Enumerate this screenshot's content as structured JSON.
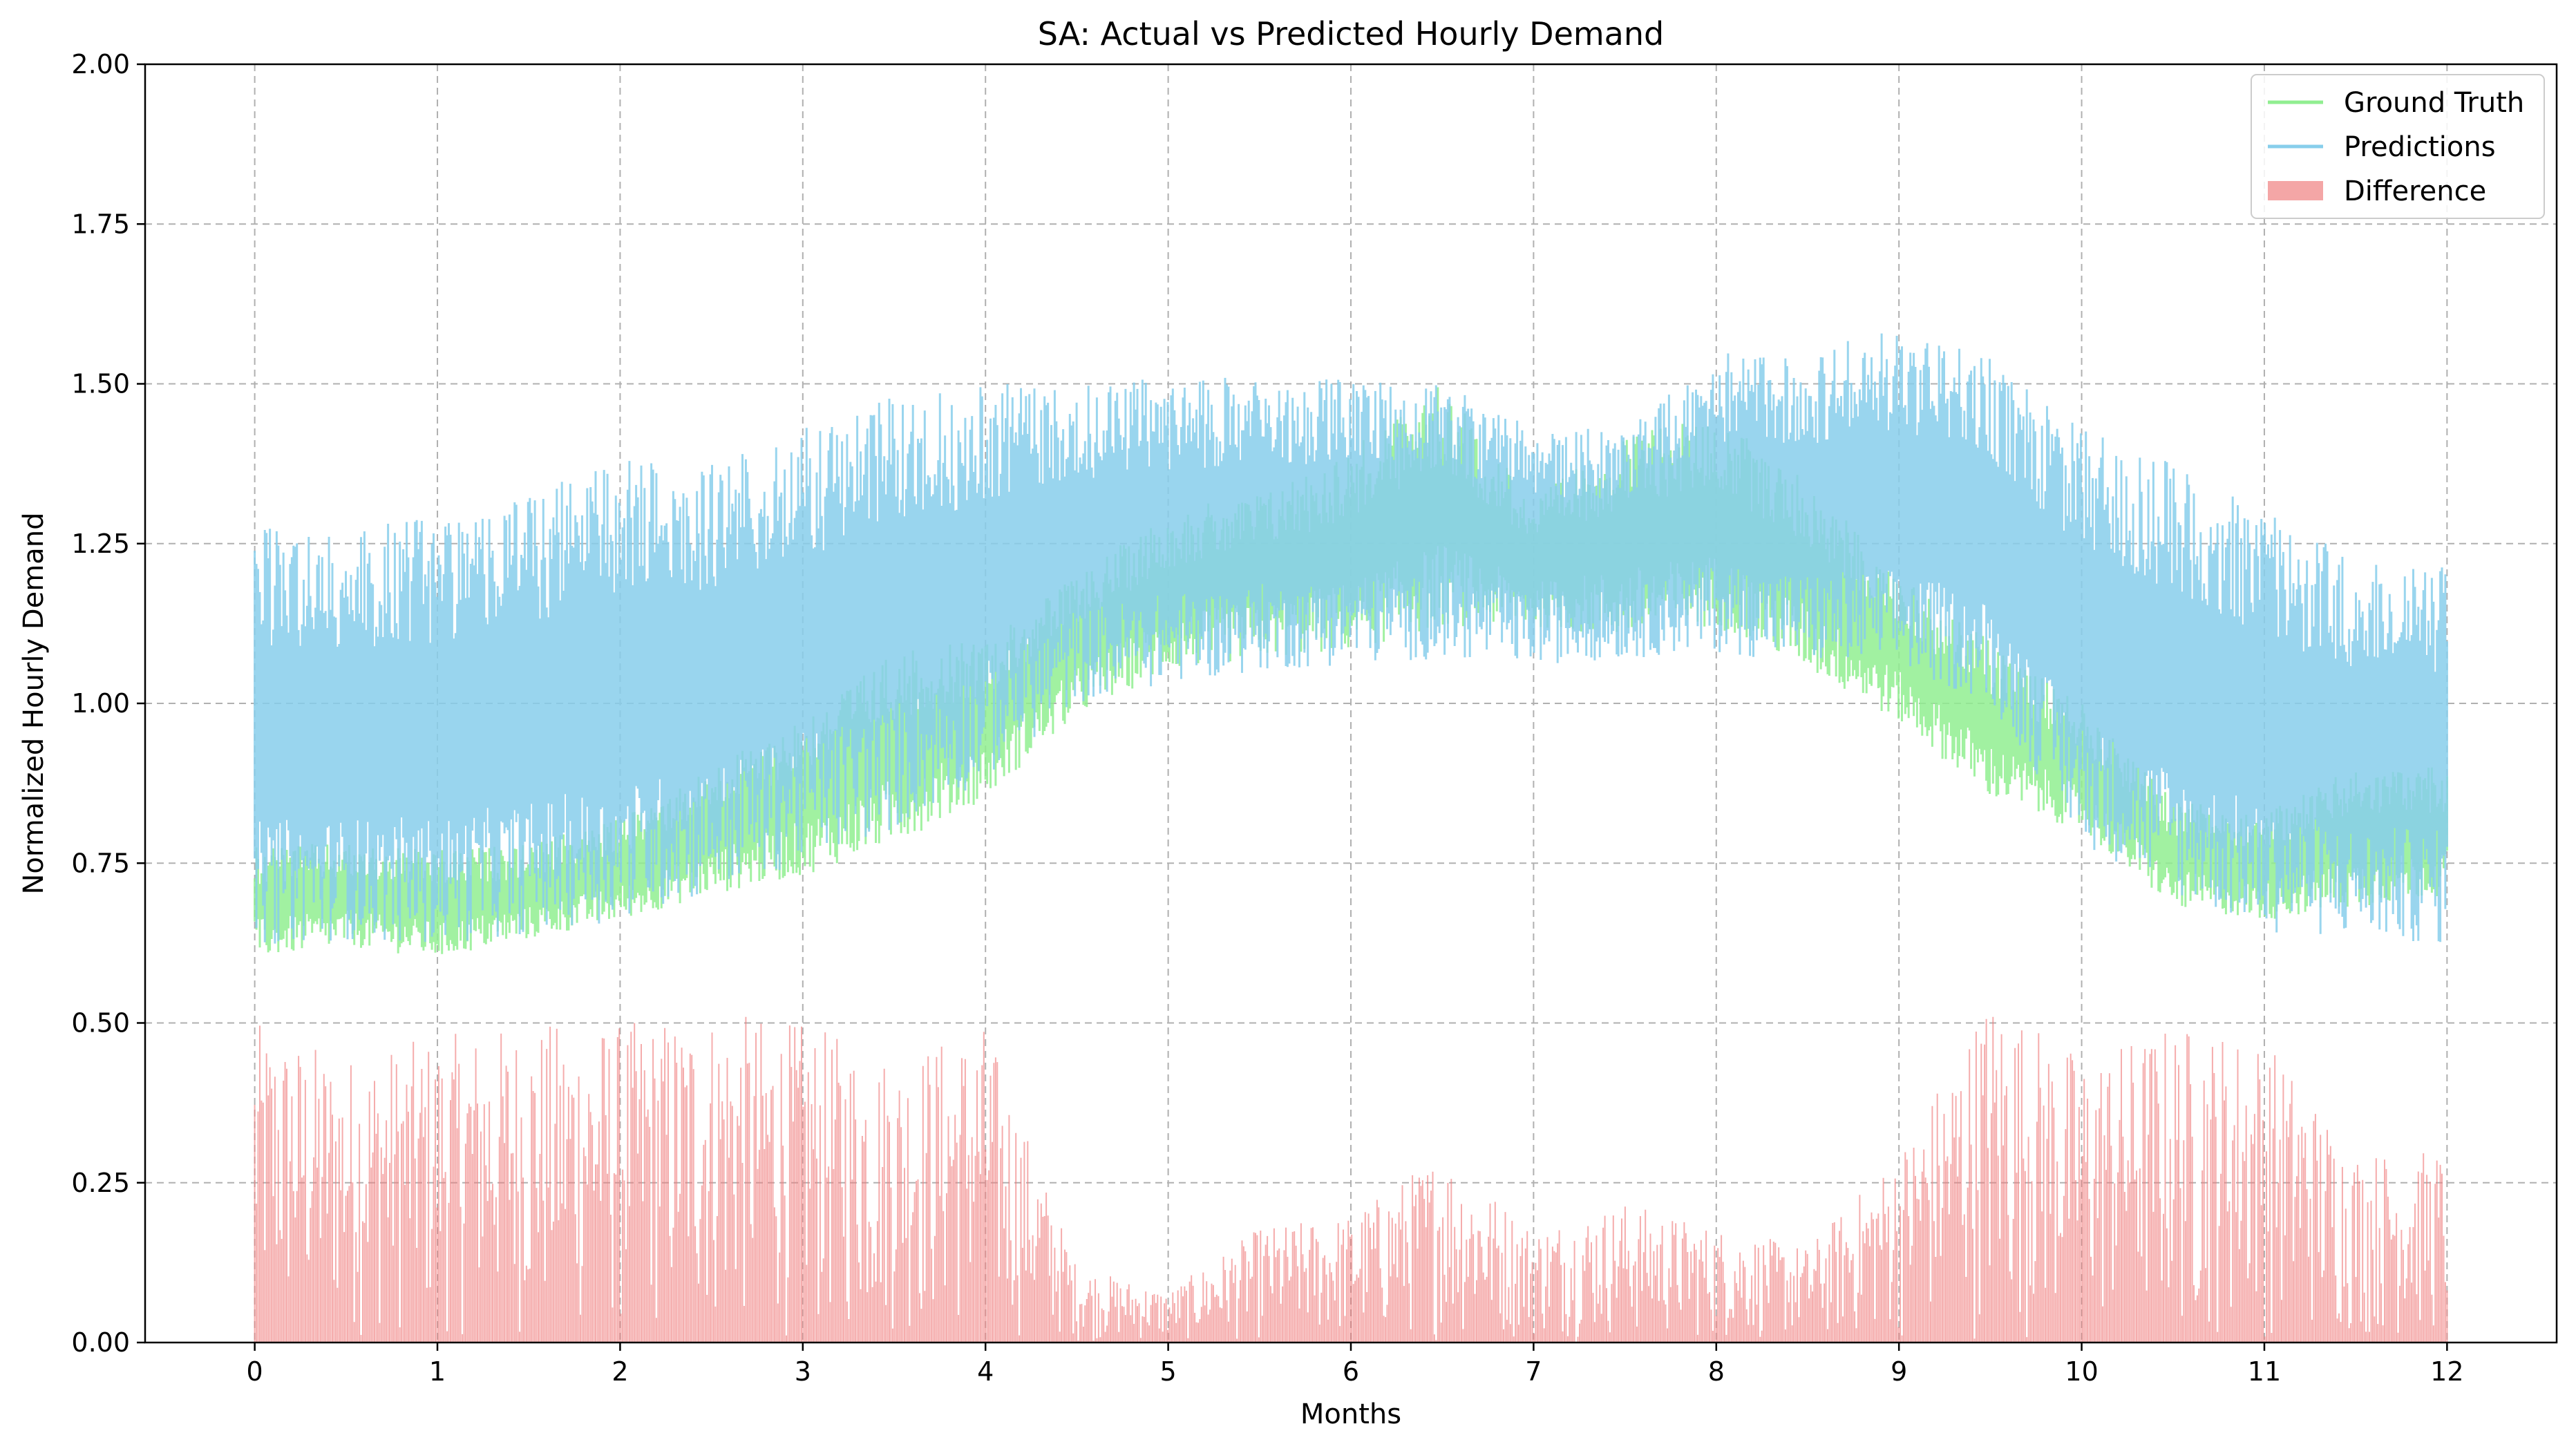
{
  "chart_data": {
    "type": "line",
    "title": "SA: Actual vs Predicted Hourly Demand",
    "xlabel": "Months",
    "ylabel": "Normalized Hourly Demand",
    "xlim": [
      -0.6,
      12.6
    ],
    "ylim": [
      0,
      2.0
    ],
    "x_ticks": [
      "0",
      "1",
      "2",
      "3",
      "4",
      "5",
      "6",
      "7",
      "8",
      "9",
      "10",
      "11",
      "12"
    ],
    "y_ticks": [
      "0.00",
      "0.25",
      "0.50",
      "0.75",
      "1.00",
      "1.25",
      "1.50",
      "1.75",
      "2.00"
    ],
    "grid": true,
    "legend_position": "top-right",
    "legend": [
      "Ground Truth",
      "Predictions",
      "Difference"
    ],
    "colors": {
      "ground_truth": "#90ee90",
      "predictions": "#87ceeb",
      "difference": "#f08080",
      "grid": "#b0b0b0"
    },
    "x": [
      0,
      0.5,
      1,
      1.5,
      2,
      2.5,
      3,
      3.5,
      4,
      4.5,
      5,
      5.5,
      6,
      6.5,
      7,
      7.5,
      8,
      8.5,
      9,
      9.5,
      10,
      10.5,
      11,
      11.5,
      12
    ],
    "series": [
      {
        "name": "Ground Truth",
        "kind": "line",
        "low": [
          0.6,
          0.62,
          0.6,
          0.63,
          0.66,
          0.7,
          0.73,
          0.78,
          0.85,
          0.98,
          1.05,
          1.07,
          1.08,
          1.12,
          1.12,
          1.1,
          1.12,
          1.05,
          0.97,
          0.85,
          0.8,
          0.68,
          0.66,
          0.68,
          0.7
        ],
        "high": [
          0.78,
          0.78,
          0.77,
          0.78,
          0.82,
          0.9,
          0.98,
          1.08,
          1.1,
          1.2,
          1.3,
          1.33,
          1.4,
          1.5,
          1.32,
          1.42,
          1.45,
          1.35,
          1.2,
          1.1,
          1.0,
          0.85,
          0.83,
          0.9,
          0.9
        ]
      },
      {
        "name": "Predictions",
        "kind": "line",
        "low": [
          0.62,
          0.63,
          0.62,
          0.64,
          0.66,
          0.7,
          0.75,
          0.8,
          0.88,
          1.0,
          1.03,
          1.05,
          1.06,
          1.07,
          1.06,
          1.07,
          1.08,
          1.06,
          1.05,
          1.0,
          0.78,
          0.7,
          0.64,
          0.63,
          0.62
        ],
        "high": [
          1.28,
          1.27,
          1.3,
          1.33,
          1.38,
          1.38,
          1.43,
          1.48,
          1.5,
          1.5,
          1.51,
          1.51,
          1.51,
          1.5,
          1.43,
          1.43,
          1.55,
          1.55,
          1.59,
          1.54,
          1.43,
          1.38,
          1.3,
          1.23,
          1.23
        ]
      },
      {
        "name": "Difference",
        "kind": "bar",
        "high": [
          0.5,
          0.45,
          0.48,
          0.5,
          0.5,
          0.52,
          0.5,
          0.45,
          0.5,
          0.12,
          0.08,
          0.18,
          0.2,
          0.3,
          0.18,
          0.22,
          0.18,
          0.15,
          0.3,
          0.55,
          0.45,
          0.5,
          0.48,
          0.3,
          0.3
        ]
      }
    ]
  }
}
